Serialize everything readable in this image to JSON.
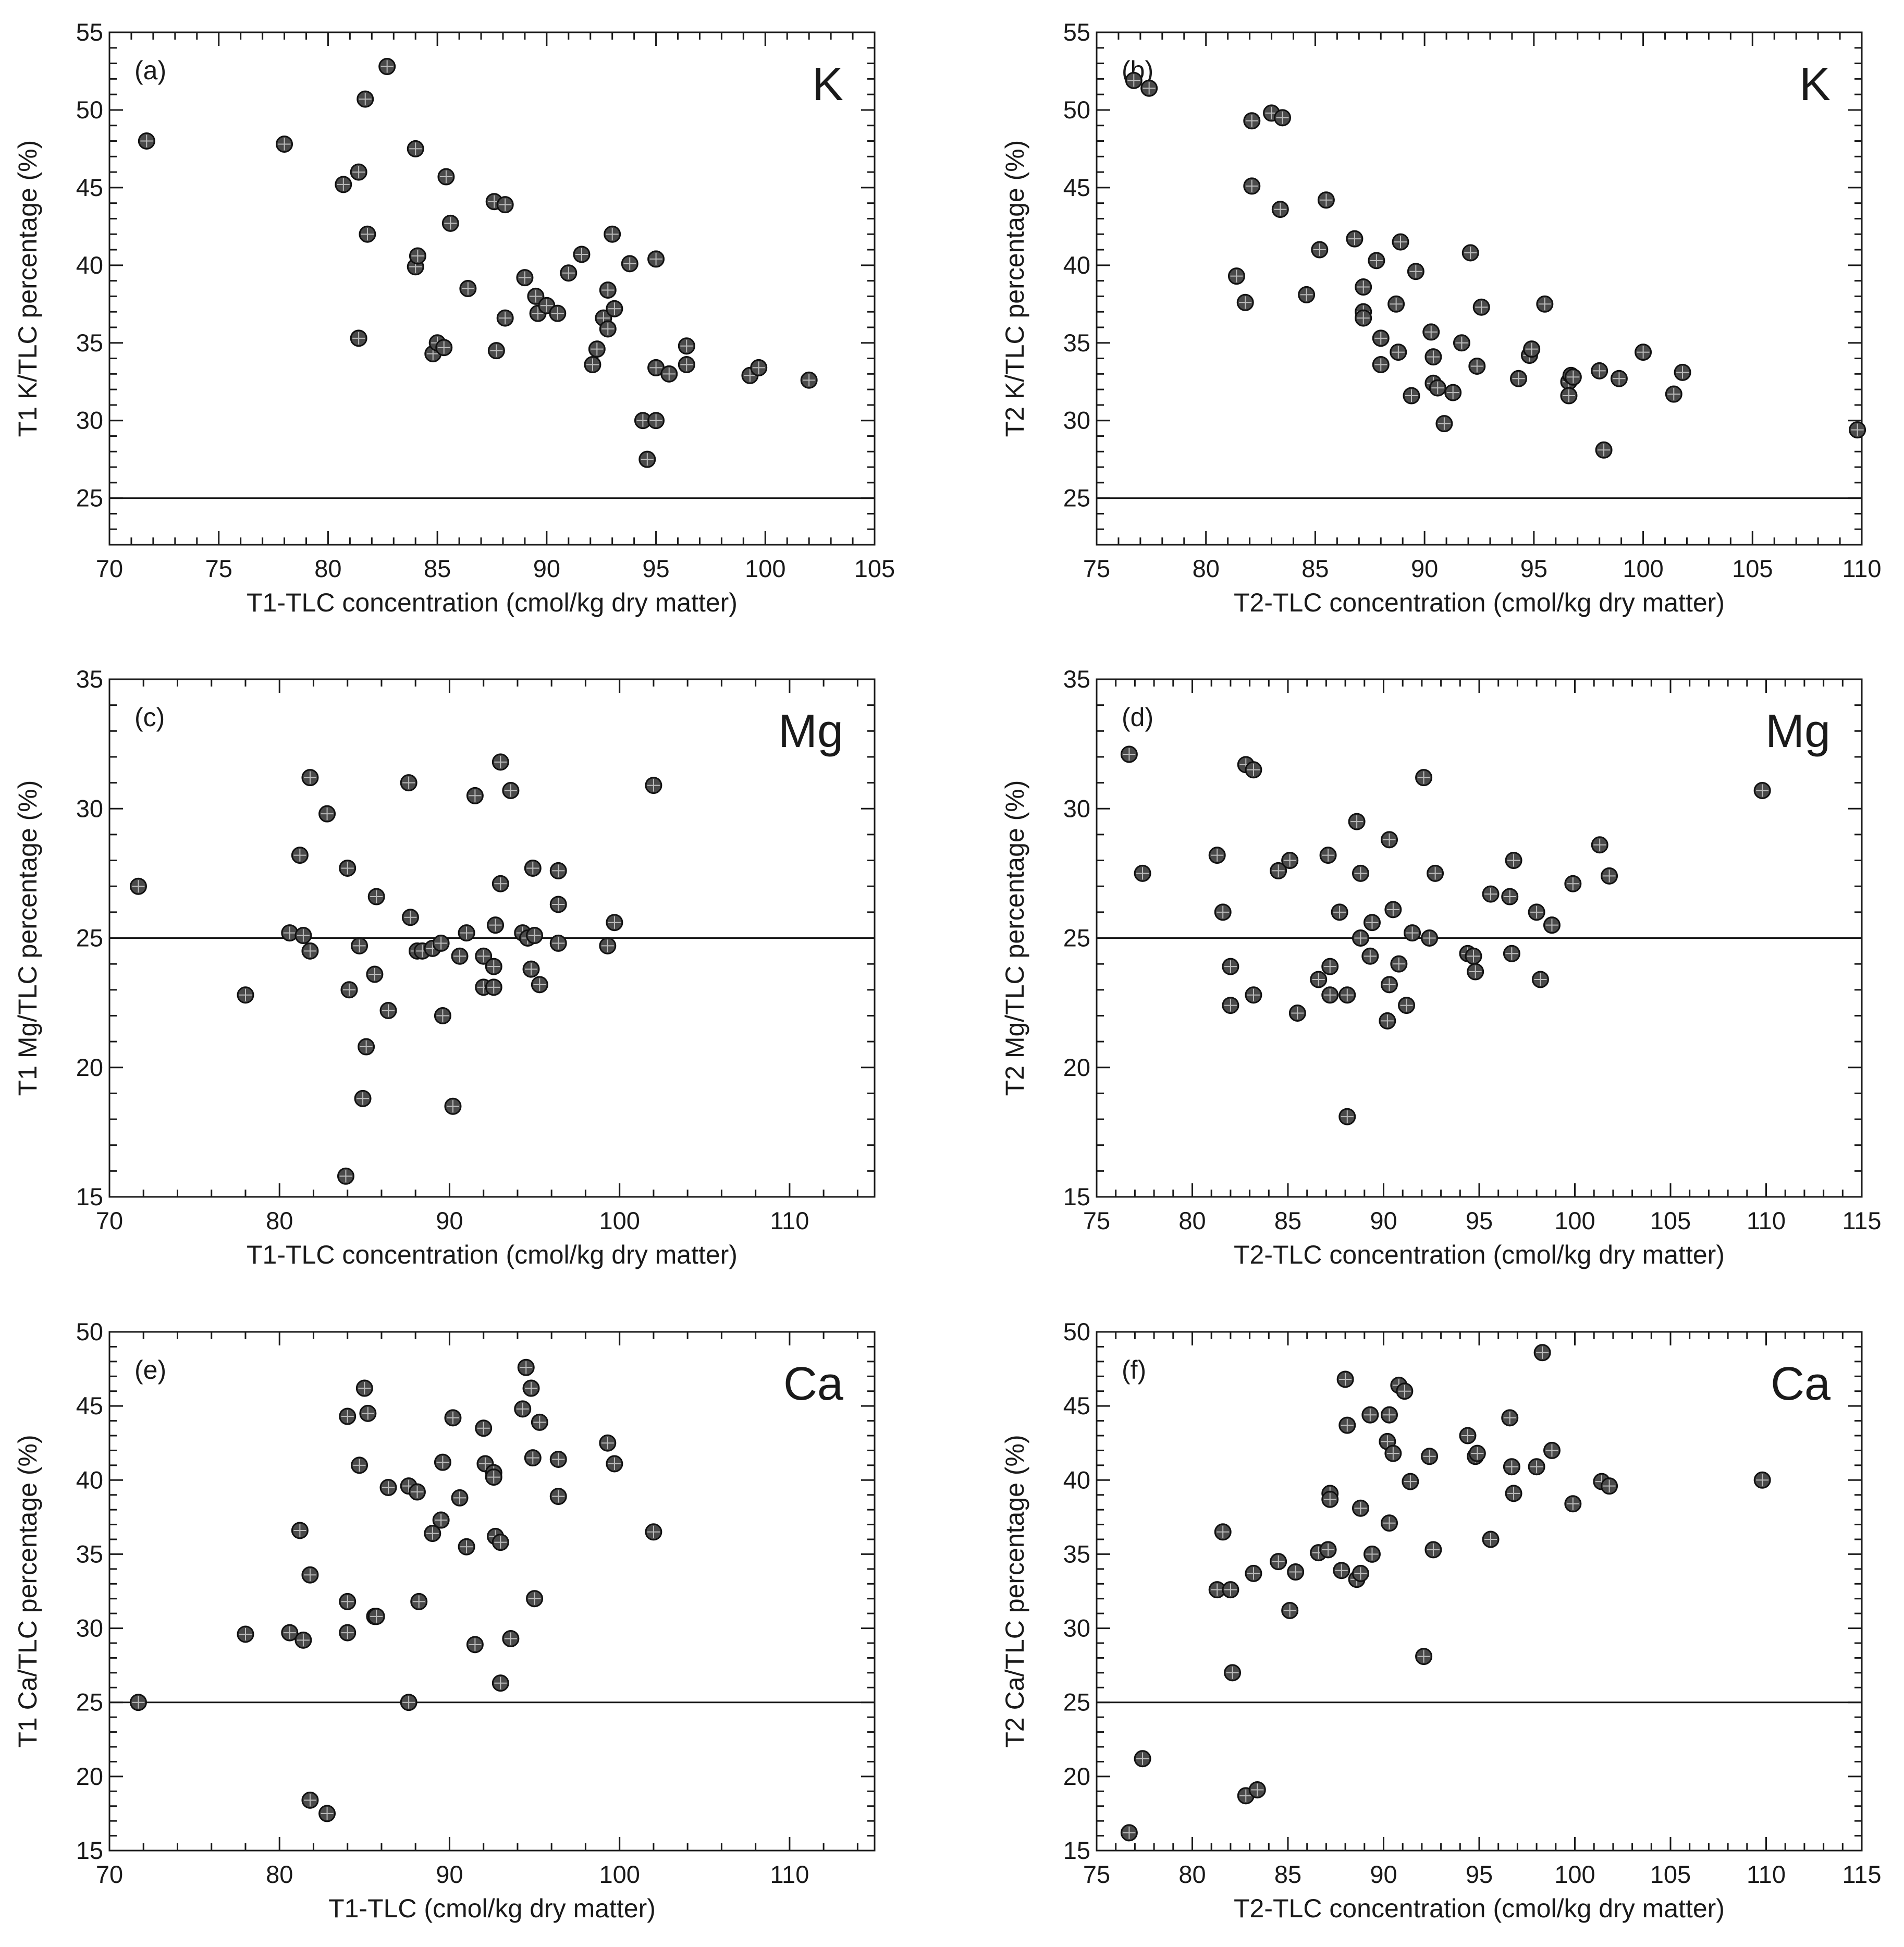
{
  "chart_data": [
    {
      "panel": "(a)",
      "element": "K",
      "type": "scatter",
      "xlabel": "T1-TLC concentration (cmol/kg dry matter)",
      "ylabel": "T1 K/TLC percentage (%)",
      "xlim": [
        70,
        105
      ],
      "ylim": [
        22,
        55
      ],
      "xticks": [
        70,
        75,
        80,
        85,
        90,
        95,
        100,
        105
      ],
      "yticks": [
        25,
        30,
        35,
        40,
        45,
        50,
        55
      ],
      "reference_line": 25,
      "points": [
        [
          71.7,
          48.0
        ],
        [
          78.0,
          47.8
        ],
        [
          80.7,
          45.2
        ],
        [
          81.4,
          46.0
        ],
        [
          81.7,
          50.7
        ],
        [
          82.7,
          52.8
        ],
        [
          81.8,
          42.0
        ],
        [
          81.4,
          35.3
        ],
        [
          84.0,
          47.5
        ],
        [
          84.0,
          39.9
        ],
        [
          84.1,
          40.6
        ],
        [
          85.4,
          45.7
        ],
        [
          85.6,
          42.7
        ],
        [
          86.4,
          38.5
        ],
        [
          87.6,
          44.1
        ],
        [
          88.1,
          43.9
        ],
        [
          88.1,
          36.6
        ],
        [
          87.7,
          34.5
        ],
        [
          84.8,
          34.3
        ],
        [
          85.0,
          35.0
        ],
        [
          85.3,
          34.7
        ],
        [
          89.0,
          39.2
        ],
        [
          89.5,
          38.0
        ],
        [
          89.6,
          36.9
        ],
        [
          90.0,
          37.4
        ],
        [
          90.5,
          36.9
        ],
        [
          91.0,
          39.5
        ],
        [
          91.6,
          40.7
        ],
        [
          92.1,
          33.6
        ],
        [
          92.3,
          34.6
        ],
        [
          92.6,
          36.6
        ],
        [
          92.8,
          35.9
        ],
        [
          92.8,
          38.4
        ],
        [
          93.1,
          37.2
        ],
        [
          93.0,
          42.0
        ],
        [
          93.8,
          40.1
        ],
        [
          94.4,
          30.0
        ],
        [
          94.6,
          27.5
        ],
        [
          95.0,
          30.0
        ],
        [
          95.0,
          40.4
        ],
        [
          95.0,
          33.4
        ],
        [
          95.6,
          33.0
        ],
        [
          96.4,
          34.8
        ],
        [
          96.4,
          33.6
        ],
        [
          99.3,
          32.9
        ],
        [
          99.7,
          33.4
        ],
        [
          102.0,
          32.6
        ]
      ]
    },
    {
      "panel": "(b)",
      "element": "K",
      "type": "scatter",
      "xlabel": "T2-TLC concentration (cmol/kg dry matter)",
      "ylabel": "T2 K/TLC percentage (%)",
      "xlim": [
        75,
        110
      ],
      "ylim": [
        22,
        55
      ],
      "xticks": [
        75,
        80,
        85,
        90,
        95,
        100,
        105,
        110
      ],
      "yticks": [
        25,
        30,
        35,
        40,
        45,
        50,
        55
      ],
      "reference_line": 25,
      "points": [
        [
          76.7,
          51.9
        ],
        [
          77.4,
          51.4
        ],
        [
          82.1,
          49.3
        ],
        [
          83.0,
          49.8
        ],
        [
          83.5,
          49.5
        ],
        [
          82.1,
          45.1
        ],
        [
          83.4,
          43.6
        ],
        [
          85.5,
          44.2
        ],
        [
          81.4,
          39.3
        ],
        [
          81.8,
          37.6
        ],
        [
          84.6,
          38.1
        ],
        [
          85.2,
          41.0
        ],
        [
          86.8,
          41.7
        ],
        [
          87.2,
          38.6
        ],
        [
          87.2,
          37.0
        ],
        [
          87.2,
          36.6
        ],
        [
          87.8,
          40.3
        ],
        [
          88.0,
          35.3
        ],
        [
          88.0,
          33.6
        ],
        [
          88.7,
          37.5
        ],
        [
          88.8,
          34.4
        ],
        [
          88.9,
          41.5
        ],
        [
          89.4,
          31.6
        ],
        [
          89.6,
          39.6
        ],
        [
          90.3,
          35.7
        ],
        [
          90.4,
          34.1
        ],
        [
          90.4,
          32.4
        ],
        [
          90.6,
          32.1
        ],
        [
          90.9,
          29.8
        ],
        [
          91.3,
          31.8
        ],
        [
          91.7,
          35.0
        ],
        [
          92.1,
          40.8
        ],
        [
          92.4,
          33.5
        ],
        [
          92.6,
          37.3
        ],
        [
          94.3,
          32.7
        ],
        [
          94.8,
          34.2
        ],
        [
          94.9,
          34.6
        ],
        [
          95.5,
          37.5
        ],
        [
          96.6,
          32.5
        ],
        [
          96.6,
          31.6
        ],
        [
          96.7,
          32.9
        ],
        [
          96.8,
          32.8
        ],
        [
          98.0,
          33.2
        ],
        [
          98.2,
          28.1
        ],
        [
          98.9,
          32.7
        ],
        [
          100.0,
          34.4
        ],
        [
          101.4,
          31.7
        ],
        [
          101.8,
          33.1
        ],
        [
          109.8,
          29.4
        ]
      ]
    },
    {
      "panel": "(c)",
      "element": "Mg",
      "type": "scatter",
      "xlabel": "T1-TLC concentration (cmol/kg dry matter)",
      "ylabel": "T1 Mg/TLC percentage (%)",
      "xlim": [
        70,
        115
      ],
      "ylim": [
        15,
        35
      ],
      "xticks": [
        70,
        80,
        90,
        100,
        110
      ],
      "yticks": [
        15,
        20,
        25,
        30,
        35
      ],
      "reference_line": 25,
      "points": [
        [
          71.7,
          27.0
        ],
        [
          78.0,
          22.8
        ],
        [
          80.6,
          25.2
        ],
        [
          81.2,
          28.2
        ],
        [
          81.4,
          25.1
        ],
        [
          81.8,
          31.2
        ],
        [
          81.8,
          24.5
        ],
        [
          82.8,
          29.8
        ],
        [
          84.0,
          27.7
        ],
        [
          84.1,
          23.0
        ],
        [
          83.9,
          15.8
        ],
        [
          84.7,
          24.7
        ],
        [
          84.9,
          18.8
        ],
        [
          85.1,
          20.8
        ],
        [
          85.6,
          23.6
        ],
        [
          85.7,
          26.6
        ],
        [
          86.4,
          22.2
        ],
        [
          87.6,
          31.0
        ],
        [
          87.7,
          25.8
        ],
        [
          88.1,
          24.5
        ],
        [
          88.4,
          24.5
        ],
        [
          89.0,
          24.6
        ],
        [
          89.5,
          24.8
        ],
        [
          89.6,
          22.0
        ],
        [
          90.2,
          18.5
        ],
        [
          90.6,
          24.3
        ],
        [
          91.0,
          25.2
        ],
        [
          91.5,
          30.5
        ],
        [
          92.0,
          24.3
        ],
        [
          92.0,
          23.1
        ],
        [
          92.6,
          23.9
        ],
        [
          92.6,
          23.1
        ],
        [
          92.7,
          25.5
        ],
        [
          93.0,
          27.1
        ],
        [
          93.0,
          31.8
        ],
        [
          93.6,
          30.7
        ],
        [
          94.3,
          25.2
        ],
        [
          94.6,
          25.0
        ],
        [
          94.8,
          23.8
        ],
        [
          94.9,
          27.7
        ],
        [
          95.0,
          25.1
        ],
        [
          95.3,
          23.2
        ],
        [
          96.4,
          27.6
        ],
        [
          96.4,
          26.3
        ],
        [
          96.4,
          24.8
        ],
        [
          99.3,
          24.7
        ],
        [
          99.7,
          25.6
        ],
        [
          102.0,
          30.9
        ]
      ]
    },
    {
      "panel": "(d)",
      "element": "Mg",
      "type": "scatter",
      "xlabel": "T2-TLC concentration (cmol/kg dry matter)",
      "ylabel": "T2 Mg/TLC percentage (%)",
      "xlim": [
        75,
        115
      ],
      "ylim": [
        15,
        35
      ],
      "xticks": [
        75,
        80,
        85,
        90,
        95,
        100,
        105,
        110,
        115
      ],
      "yticks": [
        15,
        20,
        25,
        30,
        35
      ],
      "reference_line": 25,
      "points": [
        [
          76.7,
          32.1
        ],
        [
          77.4,
          27.5
        ],
        [
          81.3,
          28.2
        ],
        [
          81.6,
          26.0
        ],
        [
          82.0,
          23.9
        ],
        [
          82.0,
          22.4
        ],
        [
          82.8,
          31.7
        ],
        [
          83.2,
          22.8
        ],
        [
          83.2,
          31.5
        ],
        [
          84.5,
          27.6
        ],
        [
          85.1,
          28.0
        ],
        [
          85.5,
          22.1
        ],
        [
          86.6,
          23.4
        ],
        [
          87.1,
          28.2
        ],
        [
          87.2,
          23.9
        ],
        [
          87.2,
          22.8
        ],
        [
          87.7,
          26.0
        ],
        [
          88.1,
          22.8
        ],
        [
          88.1,
          18.1
        ],
        [
          88.6,
          29.5
        ],
        [
          88.8,
          27.5
        ],
        [
          88.8,
          25.0
        ],
        [
          89.3,
          24.3
        ],
        [
          89.4,
          25.6
        ],
        [
          90.2,
          21.8
        ],
        [
          90.3,
          28.8
        ],
        [
          90.3,
          23.2
        ],
        [
          90.5,
          26.1
        ],
        [
          90.8,
          24.0
        ],
        [
          91.2,
          22.4
        ],
        [
          91.5,
          25.2
        ],
        [
          92.1,
          31.2
        ],
        [
          92.4,
          25.0
        ],
        [
          92.7,
          27.5
        ],
        [
          94.4,
          24.4
        ],
        [
          94.7,
          24.3
        ],
        [
          94.8,
          23.7
        ],
        [
          95.6,
          26.7
        ],
        [
          96.6,
          26.6
        ],
        [
          96.7,
          24.4
        ],
        [
          96.8,
          28.0
        ],
        [
          98.0,
          26.0
        ],
        [
          98.2,
          23.4
        ],
        [
          98.8,
          25.5
        ],
        [
          99.9,
          27.1
        ],
        [
          101.3,
          28.6
        ],
        [
          101.8,
          27.4
        ],
        [
          109.8,
          30.7
        ]
      ]
    },
    {
      "panel": "(e)",
      "element": "Ca",
      "type": "scatter",
      "xlabel": "T1-TLC (cmol/kg dry matter)",
      "ylabel": "T1 Ca/TLC percentage (%)",
      "xlim": [
        70,
        115
      ],
      "ylim": [
        15,
        50
      ],
      "xticks": [
        70,
        80,
        90,
        100,
        110
      ],
      "yticks": [
        15,
        20,
        25,
        30,
        35,
        40,
        45,
        50
      ],
      "reference_line": 25,
      "points": [
        [
          71.7,
          25.0
        ],
        [
          78.0,
          29.6
        ],
        [
          80.6,
          29.7
        ],
        [
          81.2,
          36.6
        ],
        [
          81.4,
          29.2
        ],
        [
          81.8,
          33.6
        ],
        [
          81.8,
          18.4
        ],
        [
          82.8,
          17.5
        ],
        [
          84.0,
          44.3
        ],
        [
          84.0,
          31.8
        ],
        [
          84.0,
          29.7
        ],
        [
          84.7,
          41.0
        ],
        [
          85.0,
          46.2
        ],
        [
          85.2,
          44.5
        ],
        [
          85.6,
          30.8
        ],
        [
          85.7,
          30.8
        ],
        [
          86.4,
          39.5
        ],
        [
          87.6,
          39.6
        ],
        [
          87.6,
          25.0
        ],
        [
          88.1,
          39.2
        ],
        [
          88.2,
          31.8
        ],
        [
          89.0,
          36.4
        ],
        [
          89.5,
          37.3
        ],
        [
          89.6,
          41.2
        ],
        [
          90.2,
          44.2
        ],
        [
          90.6,
          38.8
        ],
        [
          91.0,
          35.5
        ],
        [
          91.5,
          28.9
        ],
        [
          92.0,
          43.5
        ],
        [
          92.1,
          41.1
        ],
        [
          92.6,
          40.5
        ],
        [
          92.6,
          40.2
        ],
        [
          92.7,
          36.2
        ],
        [
          93.0,
          35.8
        ],
        [
          93.0,
          26.3
        ],
        [
          93.6,
          29.3
        ],
        [
          94.3,
          44.8
        ],
        [
          94.5,
          47.6
        ],
        [
          94.8,
          46.2
        ],
        [
          94.9,
          41.5
        ],
        [
          95.0,
          32.0
        ],
        [
          95.3,
          43.9
        ],
        [
          96.4,
          41.4
        ],
        [
          96.4,
          38.9
        ],
        [
          99.3,
          42.5
        ],
        [
          99.7,
          41.1
        ],
        [
          102.0,
          36.5
        ]
      ]
    },
    {
      "panel": "(f)",
      "element": "Ca",
      "type": "scatter",
      "xlabel": "T2-TLC concentration (cmol/kg dry matter)",
      "ylabel": "T2 Ca/TLC percentage (%)",
      "xlim": [
        75,
        115
      ],
      "ylim": [
        15,
        50
      ],
      "xticks": [
        75,
        80,
        85,
        90,
        95,
        100,
        105,
        110,
        115
      ],
      "yticks": [
        15,
        20,
        25,
        30,
        35,
        40,
        45,
        50
      ],
      "reference_line": 25,
      "points": [
        [
          76.7,
          16.2
        ],
        [
          77.4,
          21.2
        ],
        [
          81.3,
          32.6
        ],
        [
          81.6,
          36.5
        ],
        [
          82.0,
          32.6
        ],
        [
          82.1,
          27.0
        ],
        [
          82.8,
          18.7
        ],
        [
          83.2,
          33.7
        ],
        [
          83.4,
          19.1
        ],
        [
          84.5,
          34.5
        ],
        [
          85.1,
          31.2
        ],
        [
          85.4,
          33.8
        ],
        [
          86.6,
          35.1
        ],
        [
          87.1,
          35.3
        ],
        [
          87.2,
          39.1
        ],
        [
          87.2,
          38.7
        ],
        [
          87.8,
          33.9
        ],
        [
          88.0,
          46.8
        ],
        [
          88.1,
          43.7
        ],
        [
          88.6,
          33.3
        ],
        [
          88.8,
          38.1
        ],
        [
          88.8,
          33.7
        ],
        [
          89.4,
          35.0
        ],
        [
          89.3,
          44.4
        ],
        [
          90.2,
          42.6
        ],
        [
          90.3,
          44.4
        ],
        [
          90.3,
          37.1
        ],
        [
          90.5,
          41.8
        ],
        [
          90.8,
          46.4
        ],
        [
          91.1,
          46.0
        ],
        [
          91.4,
          39.9
        ],
        [
          92.1,
          28.1
        ],
        [
          92.4,
          41.6
        ],
        [
          92.6,
          35.3
        ],
        [
          94.4,
          43.0
        ],
        [
          94.8,
          41.6
        ],
        [
          94.9,
          41.8
        ],
        [
          95.6,
          36.0
        ],
        [
          96.6,
          44.2
        ],
        [
          96.7,
          40.9
        ],
        [
          96.8,
          39.1
        ],
        [
          98.0,
          40.9
        ],
        [
          98.3,
          48.6
        ],
        [
          98.8,
          42.0
        ],
        [
          99.9,
          38.4
        ],
        [
          101.4,
          39.9
        ],
        [
          101.8,
          39.6
        ],
        [
          109.8,
          40.0
        ]
      ]
    }
  ]
}
